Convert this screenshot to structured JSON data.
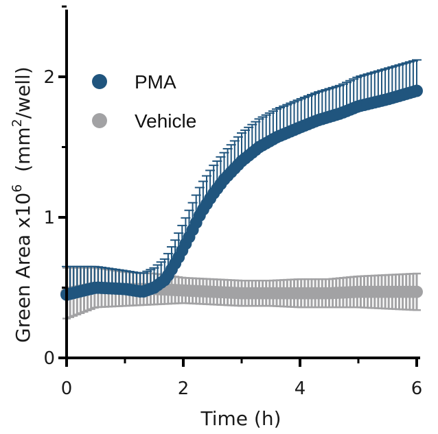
{
  "chart_data": {
    "type": "scatter",
    "xlabel": "Time (h)",
    "ylabel": {
      "main": "Green Area x10",
      "superscript": "6",
      "unit_open": "  (mm",
      "unit_superscript": "2",
      "unit_close": "/well)"
    },
    "xlim": [
      0,
      6
    ],
    "ylim": [
      0,
      2.5
    ],
    "x_ticks": [
      0,
      2,
      4,
      6
    ],
    "y_ticks": [
      0,
      1,
      2
    ],
    "legend_position": "top-left",
    "series": [
      {
        "name": "PMA",
        "color": "#20557e",
        "error_bars": "upper",
        "x": [
          0,
          0.5,
          1,
          1.3,
          1.5,
          1.7,
          1.9,
          2.1,
          2.3,
          2.5,
          2.7,
          3,
          3.3,
          3.6,
          4,
          4.3,
          4.7,
          5,
          5.5,
          6
        ],
        "y": [
          0.45,
          0.5,
          0.49,
          0.47,
          0.5,
          0.56,
          0.7,
          0.86,
          1.03,
          1.16,
          1.27,
          1.4,
          1.5,
          1.57,
          1.64,
          1.69,
          1.74,
          1.79,
          1.84,
          1.9
        ],
        "err": [
          0.2,
          0.15,
          0.13,
          0.13,
          0.14,
          0.15,
          0.17,
          0.19,
          0.2,
          0.2,
          0.19,
          0.2,
          0.2,
          0.2,
          0.2,
          0.2,
          0.2,
          0.21,
          0.22,
          0.22
        ]
      },
      {
        "name": "Vehicle",
        "color": "#a2a2a4",
        "error_bars": "both",
        "x": [
          0,
          0.5,
          1,
          1.5,
          2,
          2.5,
          3,
          3.5,
          4,
          4.5,
          5,
          5.5,
          6
        ],
        "y": [
          0.46,
          0.5,
          0.49,
          0.49,
          0.48,
          0.47,
          0.46,
          0.46,
          0.46,
          0.46,
          0.47,
          0.47,
          0.47
        ],
        "err": [
          0.18,
          0.14,
          0.12,
          0.11,
          0.09,
          0.09,
          0.09,
          0.09,
          0.1,
          0.1,
          0.11,
          0.12,
          0.13
        ]
      }
    ]
  }
}
